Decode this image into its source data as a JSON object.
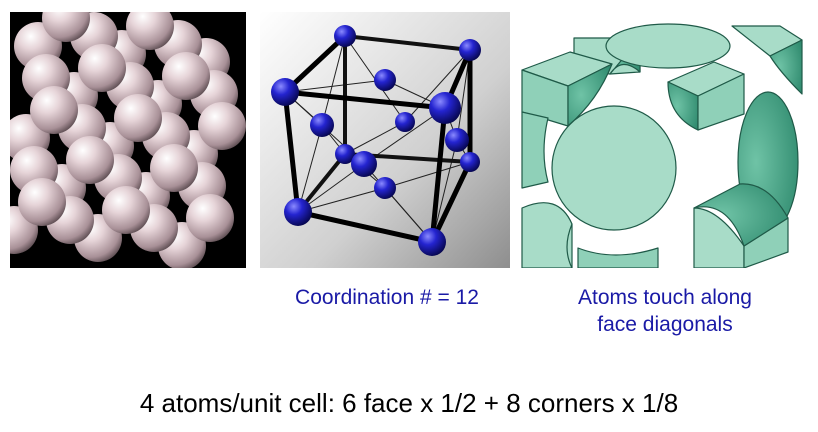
{
  "captions": {
    "coordination": "Coordination # = 12",
    "touch_line1": "Atoms touch along",
    "touch_line2": "face diagonals"
  },
  "formula": "4 atoms/unit cell: 6 face x 1/2 + 8 corners x 1/8",
  "colors": {
    "caption_blue": "#1a1aa6",
    "atom_blue": "#1c1cb8",
    "sphere_pink": "#e2cfd2",
    "cut_teal": "#a8dcc8",
    "cut_teal_dark": "#3f9c80"
  }
}
